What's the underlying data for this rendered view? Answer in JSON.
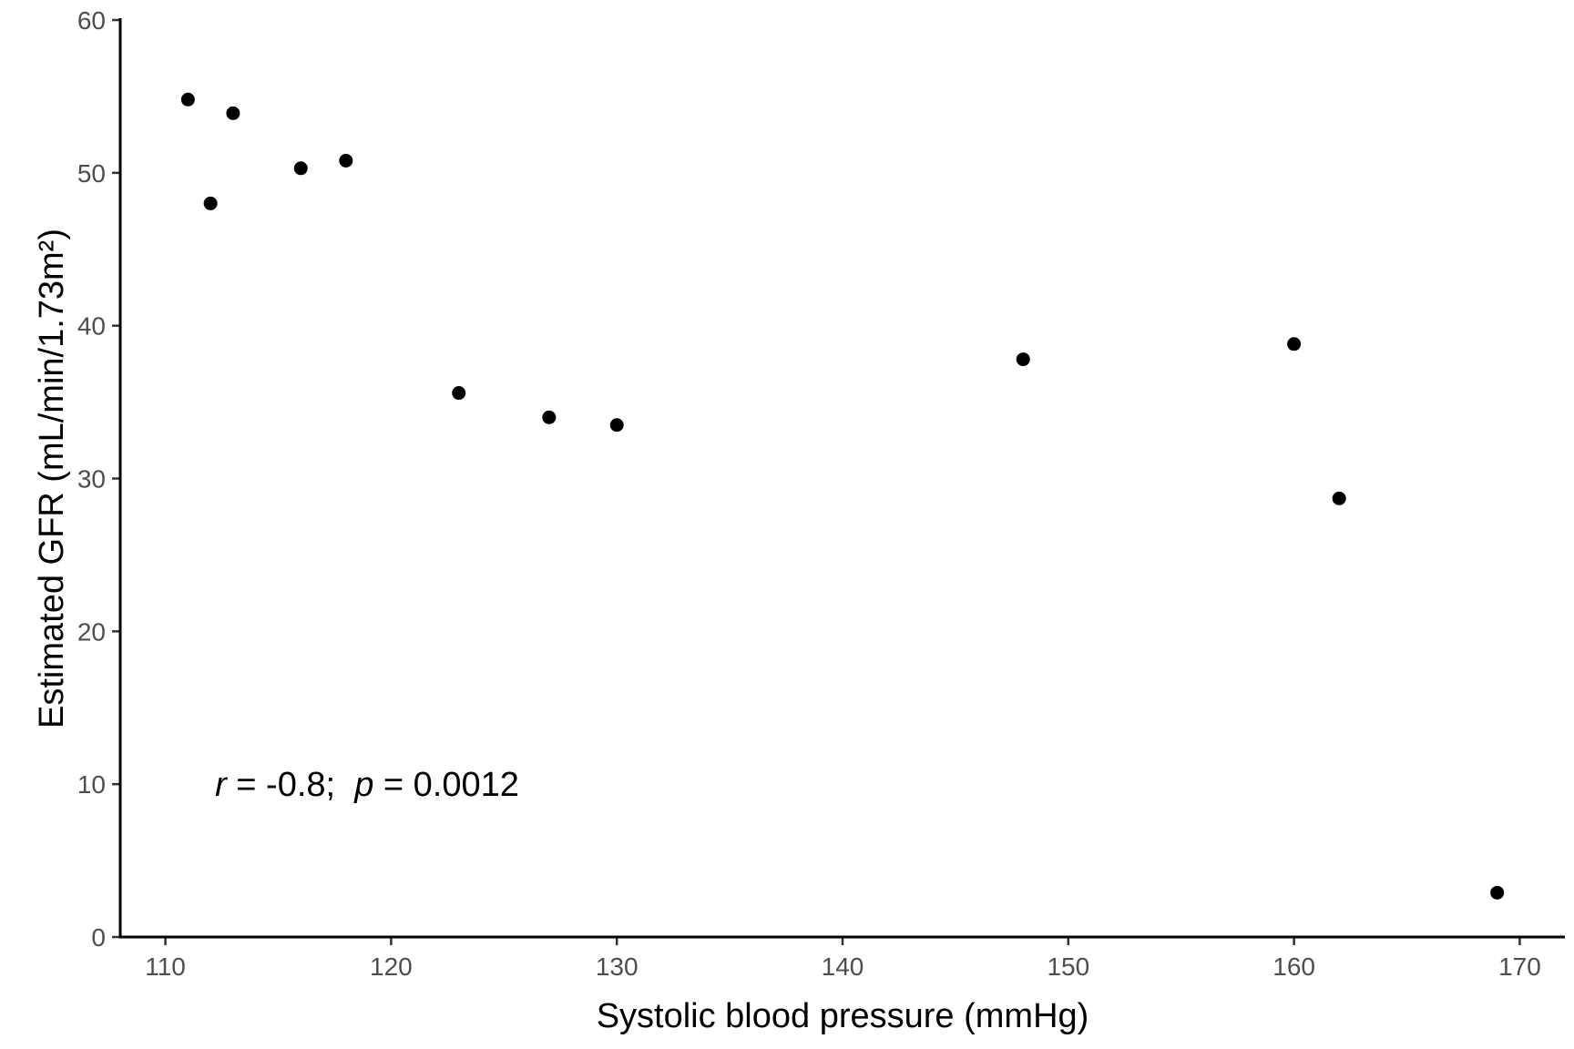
{
  "chart_data": {
    "type": "scatter",
    "title": "",
    "xlabel": "Systolic blood pressure (mmHg)",
    "ylabel": "Estimated GFR (mL/min/1.73m²)",
    "xlim": [
      108,
      172
    ],
    "ylim": [
      0,
      60
    ],
    "xticks": [
      110,
      120,
      130,
      140,
      150,
      160,
      170
    ],
    "yticks": [
      0,
      10,
      20,
      30,
      40,
      50,
      60
    ],
    "grid": false,
    "marker_color": "#000000",
    "points": [
      {
        "x": 111,
        "y": 54.8
      },
      {
        "x": 112,
        "y": 48.0
      },
      {
        "x": 113,
        "y": 53.9
      },
      {
        "x": 116,
        "y": 50.3
      },
      {
        "x": 118,
        "y": 50.8
      },
      {
        "x": 123,
        "y": 35.6
      },
      {
        "x": 127,
        "y": 34.0
      },
      {
        "x": 130,
        "y": 33.5
      },
      {
        "x": 148,
        "y": 37.8
      },
      {
        "x": 160,
        "y": 38.8
      },
      {
        "x": 162,
        "y": 28.7
      },
      {
        "x": 169,
        "y": 2.9
      }
    ],
    "annotation": {
      "r_symbol": "r",
      "r_text": " = -0.8;  ",
      "p_symbol": "p",
      "p_text": " = 0.0012",
      "x": 112.2,
      "y": 10
    }
  }
}
